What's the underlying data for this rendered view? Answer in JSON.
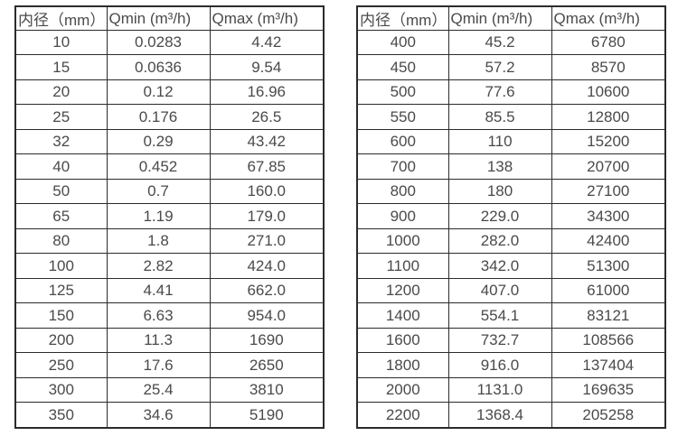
{
  "page": {
    "background": "#ffffff",
    "border_color": "#2b2b2b",
    "text_color": "#4a4a4a"
  },
  "chart_data": [
    {
      "type": "table",
      "name": "flow-rates-small-diameter",
      "columns": [
        "内径（mm）",
        "Qmin (m³/h)",
        "Qmax (m³/h)"
      ],
      "rows": [
        [
          "10",
          "0.0283",
          "4.42"
        ],
        [
          "15",
          "0.0636",
          "9.54"
        ],
        [
          "20",
          "0.12",
          "16.96"
        ],
        [
          "25",
          "0.176",
          "26.5"
        ],
        [
          "32",
          "0.29",
          "43.42"
        ],
        [
          "40",
          "0.452",
          "67.85"
        ],
        [
          "50",
          "0.7",
          "160.0"
        ],
        [
          "65",
          "1.19",
          "179.0"
        ],
        [
          "80",
          "1.8",
          "271.0"
        ],
        [
          "100",
          "2.82",
          "424.0"
        ],
        [
          "125",
          "4.41",
          "662.0"
        ],
        [
          "150",
          "6.63",
          "954.0"
        ],
        [
          "200",
          "11.3",
          "1690"
        ],
        [
          "250",
          "17.6",
          "2650"
        ],
        [
          "300",
          "25.4",
          "3810"
        ],
        [
          "350",
          "34.6",
          "5190"
        ]
      ]
    },
    {
      "type": "table",
      "name": "flow-rates-large-diameter",
      "columns": [
        "内径（mm）",
        "Qmin (m³/h)",
        "Qmax (m³/h)"
      ],
      "rows": [
        [
          "400",
          "45.2",
          "6780"
        ],
        [
          "450",
          "57.2",
          "8570"
        ],
        [
          "500",
          "77.6",
          "10600"
        ],
        [
          "550",
          "85.5",
          "12800"
        ],
        [
          "600",
          "110",
          "15200"
        ],
        [
          "700",
          "138",
          "20700"
        ],
        [
          "800",
          "180",
          "27100"
        ],
        [
          "900",
          "229.0",
          "34300"
        ],
        [
          "1000",
          "282.0",
          "42400"
        ],
        [
          "1100",
          "342.0",
          "51300"
        ],
        [
          "1200",
          "407.0",
          "61000"
        ],
        [
          "1400",
          "554.1",
          "83121"
        ],
        [
          "1600",
          "732.7",
          "108566"
        ],
        [
          "1800",
          "916.0",
          "137404"
        ],
        [
          "2000",
          "1131.0",
          "169635"
        ],
        [
          "2200",
          "1368.4",
          "205258"
        ]
      ]
    }
  ]
}
